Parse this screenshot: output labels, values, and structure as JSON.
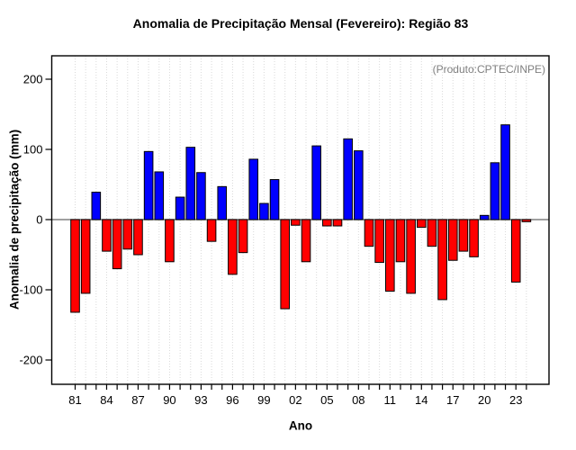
{
  "chart_data": {
    "type": "bar",
    "title": "Anomalia de Precipitação Mensal (Fevereiro): Região 83",
    "xlabel": "Ano",
    "ylabel": "Anomalia de precipitação (mm)",
    "annotation": "(Produto:CPTEC/INPE)",
    "categories": [
      1981,
      1982,
      1983,
      1984,
      1985,
      1986,
      1987,
      1988,
      1989,
      1990,
      1991,
      1992,
      1993,
      1994,
      1995,
      1996,
      1997,
      1998,
      1999,
      2000,
      2001,
      2002,
      2003,
      2004,
      2005,
      2006,
      2007,
      2008,
      2009,
      2010,
      2011,
      2012,
      2013,
      2014,
      2015,
      2016,
      2017,
      2018,
      2019,
      2020,
      2021,
      2022,
      2023,
      2024
    ],
    "values": [
      -132,
      -105,
      39,
      -45,
      -70,
      -42,
      -50,
      97,
      68,
      -60,
      32,
      103,
      67,
      -31,
      47,
      -78,
      -47,
      86,
      23,
      57,
      -127,
      -8,
      -60,
      105,
      -9,
      -9,
      115,
      98,
      -38,
      -61,
      -102,
      -60,
      -105,
      -11,
      -38,
      -114,
      -58,
      -45,
      -53,
      6,
      81,
      135,
      -89,
      -3
    ],
    "x_tick_years": [
      1981,
      1984,
      1987,
      1990,
      1993,
      1996,
      1999,
      2002,
      2005,
      2008,
      2011,
      2014,
      2017,
      2020,
      2023
    ],
    "x_tick_labels": [
      "81",
      "84",
      "87",
      "90",
      "93",
      "96",
      "99",
      "02",
      "05",
      "08",
      "11",
      "14",
      "17",
      "20",
      "23"
    ],
    "y_ticks": [
      -200,
      -100,
      0,
      100,
      200
    ],
    "ylim": [
      -235,
      235
    ],
    "grid": "vertical-dotted-per-year",
    "legend_position": "none",
    "colors": {
      "positive_bar": "#0000ff",
      "negative_bar": "#ff0000",
      "bar_border": "#000000",
      "zero_line": "#808080",
      "gridline": "#d9d9d9",
      "axis_box": "#000000",
      "annotation_text": "#7f7f7f",
      "background": "#ffffff"
    }
  }
}
